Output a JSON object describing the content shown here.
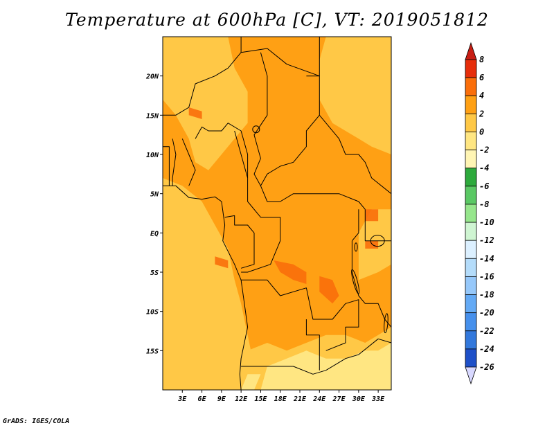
{
  "title": "Temperature at 600hPa [C], VT: 2019051812",
  "credit": "GrADS: IGES/COLA",
  "chart_data": {
    "type": "heatmap",
    "title": "Temperature at 600hPa [C], VT: 2019051812",
    "field": "Temperature at 600hPa",
    "units": "C",
    "valid_time": "2019051812",
    "lon_range": [
      0,
      35
    ],
    "lat_range": [
      -20,
      25
    ],
    "x_ticks": [
      "3E",
      "6E",
      "9E",
      "12E",
      "15E",
      "18E",
      "21E",
      "24E",
      "27E",
      "30E",
      "33E"
    ],
    "y_ticks": [
      "20N",
      "15N",
      "10N",
      "5N",
      "EQ",
      "5S",
      "10S",
      "15S"
    ],
    "colorbar": {
      "levels": [
        "8",
        "6",
        "4",
        "2",
        "0",
        "-2",
        "-4",
        "-6",
        "-8",
        "-10",
        "-12",
        "-14",
        "-16",
        "-18",
        "-20",
        "-22",
        "-24",
        "-26"
      ],
      "colors": [
        "#d8d8ff",
        "#00006e",
        "#0a28a0",
        "#1e50c8",
        "#3278dc",
        "#4690ec",
        "#64aaf5",
        "#96c8fa",
        "#b4dcfa",
        "#dcf0ff",
        "#cff5d2",
        "#96e68c",
        "#5ac864",
        "#2daa3c",
        "#fff5b4",
        "#ffe682",
        "#ffc846",
        "#ffa014",
        "#fa6e0a",
        "#e62d0a",
        "#c81e14"
      ]
    },
    "dominant_range": [
      2,
      4
    ],
    "warm_patches_range": [
      4,
      6
    ],
    "cool_region_south_range": [
      -2,
      2
    ]
  }
}
